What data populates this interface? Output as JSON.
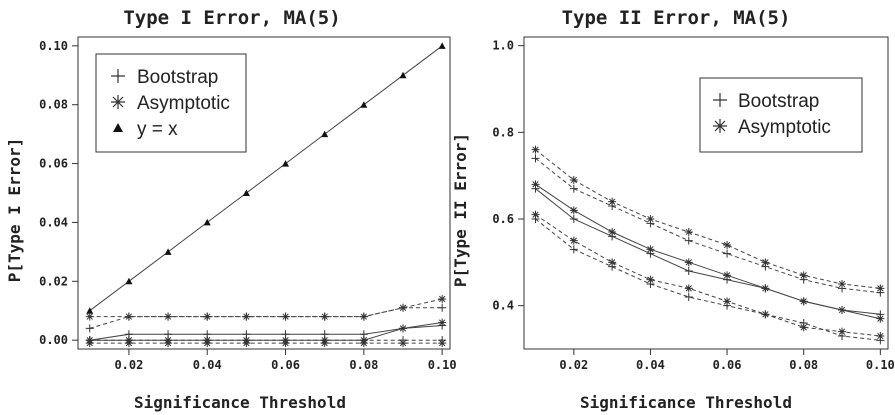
{
  "chart_data": [
    {
      "type": "line",
      "title": "Type I Error, MA(5)",
      "xlabel": "Significance Threshold",
      "ylabel": "P[Type I Error]",
      "xlim": [
        0.007,
        0.102
      ],
      "ylim": [
        -0.003,
        0.103
      ],
      "xticks": [
        "0.02",
        "0.04",
        "0.06",
        "0.08",
        "0.10"
      ],
      "yticks": [
        "0.00",
        "0.02",
        "0.04",
        "0.06",
        "0.08",
        "0.10"
      ],
      "legend": {
        "position": "top-left",
        "entries": [
          "Bootstrap",
          "Asymptotic",
          "y = x"
        ]
      },
      "x": [
        0.01,
        0.02,
        0.03,
        0.04,
        0.05,
        0.06,
        0.07,
        0.08,
        0.09,
        0.1
      ],
      "series": [
        {
          "name": "y = x",
          "marker": "triangle",
          "line": "solid",
          "values": [
            0.01,
            0.02,
            0.03,
            0.04,
            0.05,
            0.06,
            0.07,
            0.08,
            0.09,
            0.1
          ]
        },
        {
          "marker": "plus",
          "line": "solid",
          "values": [
            0.0,
            0.002,
            0.002,
            0.002,
            0.002,
            0.002,
            0.002,
            0.002,
            0.004,
            0.005
          ]
        },
        {
          "marker": "plus",
          "line": "dashed",
          "values": [
            0.004,
            0.008,
            0.008,
            0.008,
            0.008,
            0.008,
            0.008,
            0.008,
            0.011,
            0.011
          ]
        },
        {
          "marker": "plus",
          "line": "dashed",
          "values": [
            0.0,
            0.0,
            0.0,
            0.0,
            0.0,
            0.0,
            0.0,
            0.0,
            0.0,
            0.0
          ]
        },
        {
          "marker": "asterisk",
          "line": "solid",
          "values": [
            0.0,
            0.0,
            0.0,
            0.0,
            0.0,
            0.0,
            0.0,
            0.0,
            0.004,
            0.006
          ]
        },
        {
          "marker": "asterisk",
          "line": "dashed",
          "values": [
            0.008,
            0.008,
            0.008,
            0.008,
            0.008,
            0.008,
            0.008,
            0.008,
            0.011,
            0.014
          ]
        },
        {
          "marker": "asterisk",
          "line": "dashed",
          "values": [
            -0.001,
            -0.001,
            -0.001,
            -0.001,
            -0.001,
            -0.001,
            -0.001,
            -0.001,
            -0.001,
            -0.001
          ]
        }
      ]
    },
    {
      "type": "line",
      "title": "Type II Error, MA(5)",
      "xlabel": "Significance Threshold",
      "ylabel": "P[Type II Error]",
      "xlim": [
        0.007,
        0.102
      ],
      "ylim": [
        0.3,
        1.02
      ],
      "xticks": [
        "0.02",
        "0.04",
        "0.06",
        "0.08",
        "0.10"
      ],
      "yticks": [
        "0.4",
        "0.6",
        "0.8",
        "1.0"
      ],
      "legend": {
        "position": "top-right",
        "entries": [
          "Bootstrap",
          "Asymptotic"
        ]
      },
      "x": [
        0.01,
        0.02,
        0.03,
        0.04,
        0.05,
        0.06,
        0.07,
        0.08,
        0.09,
        0.1
      ],
      "series": [
        {
          "marker": "plus",
          "line": "solid",
          "values": [
            0.67,
            0.6,
            0.56,
            0.52,
            0.48,
            0.46,
            0.44,
            0.41,
            0.39,
            0.38
          ]
        },
        {
          "marker": "plus",
          "line": "dashed",
          "values": [
            0.74,
            0.67,
            0.63,
            0.59,
            0.55,
            0.52,
            0.49,
            0.46,
            0.44,
            0.43
          ]
        },
        {
          "marker": "plus",
          "line": "dashed",
          "values": [
            0.6,
            0.53,
            0.49,
            0.45,
            0.42,
            0.4,
            0.38,
            0.36,
            0.33,
            0.32
          ]
        },
        {
          "marker": "asterisk",
          "line": "solid",
          "values": [
            0.68,
            0.62,
            0.57,
            0.53,
            0.5,
            0.47,
            0.44,
            0.41,
            0.39,
            0.37
          ]
        },
        {
          "marker": "asterisk",
          "line": "dashed",
          "values": [
            0.76,
            0.69,
            0.64,
            0.6,
            0.57,
            0.54,
            0.5,
            0.47,
            0.45,
            0.44
          ]
        },
        {
          "marker": "asterisk",
          "line": "dashed",
          "values": [
            0.61,
            0.55,
            0.5,
            0.46,
            0.44,
            0.41,
            0.38,
            0.35,
            0.34,
            0.33
          ]
        }
      ]
    }
  ]
}
